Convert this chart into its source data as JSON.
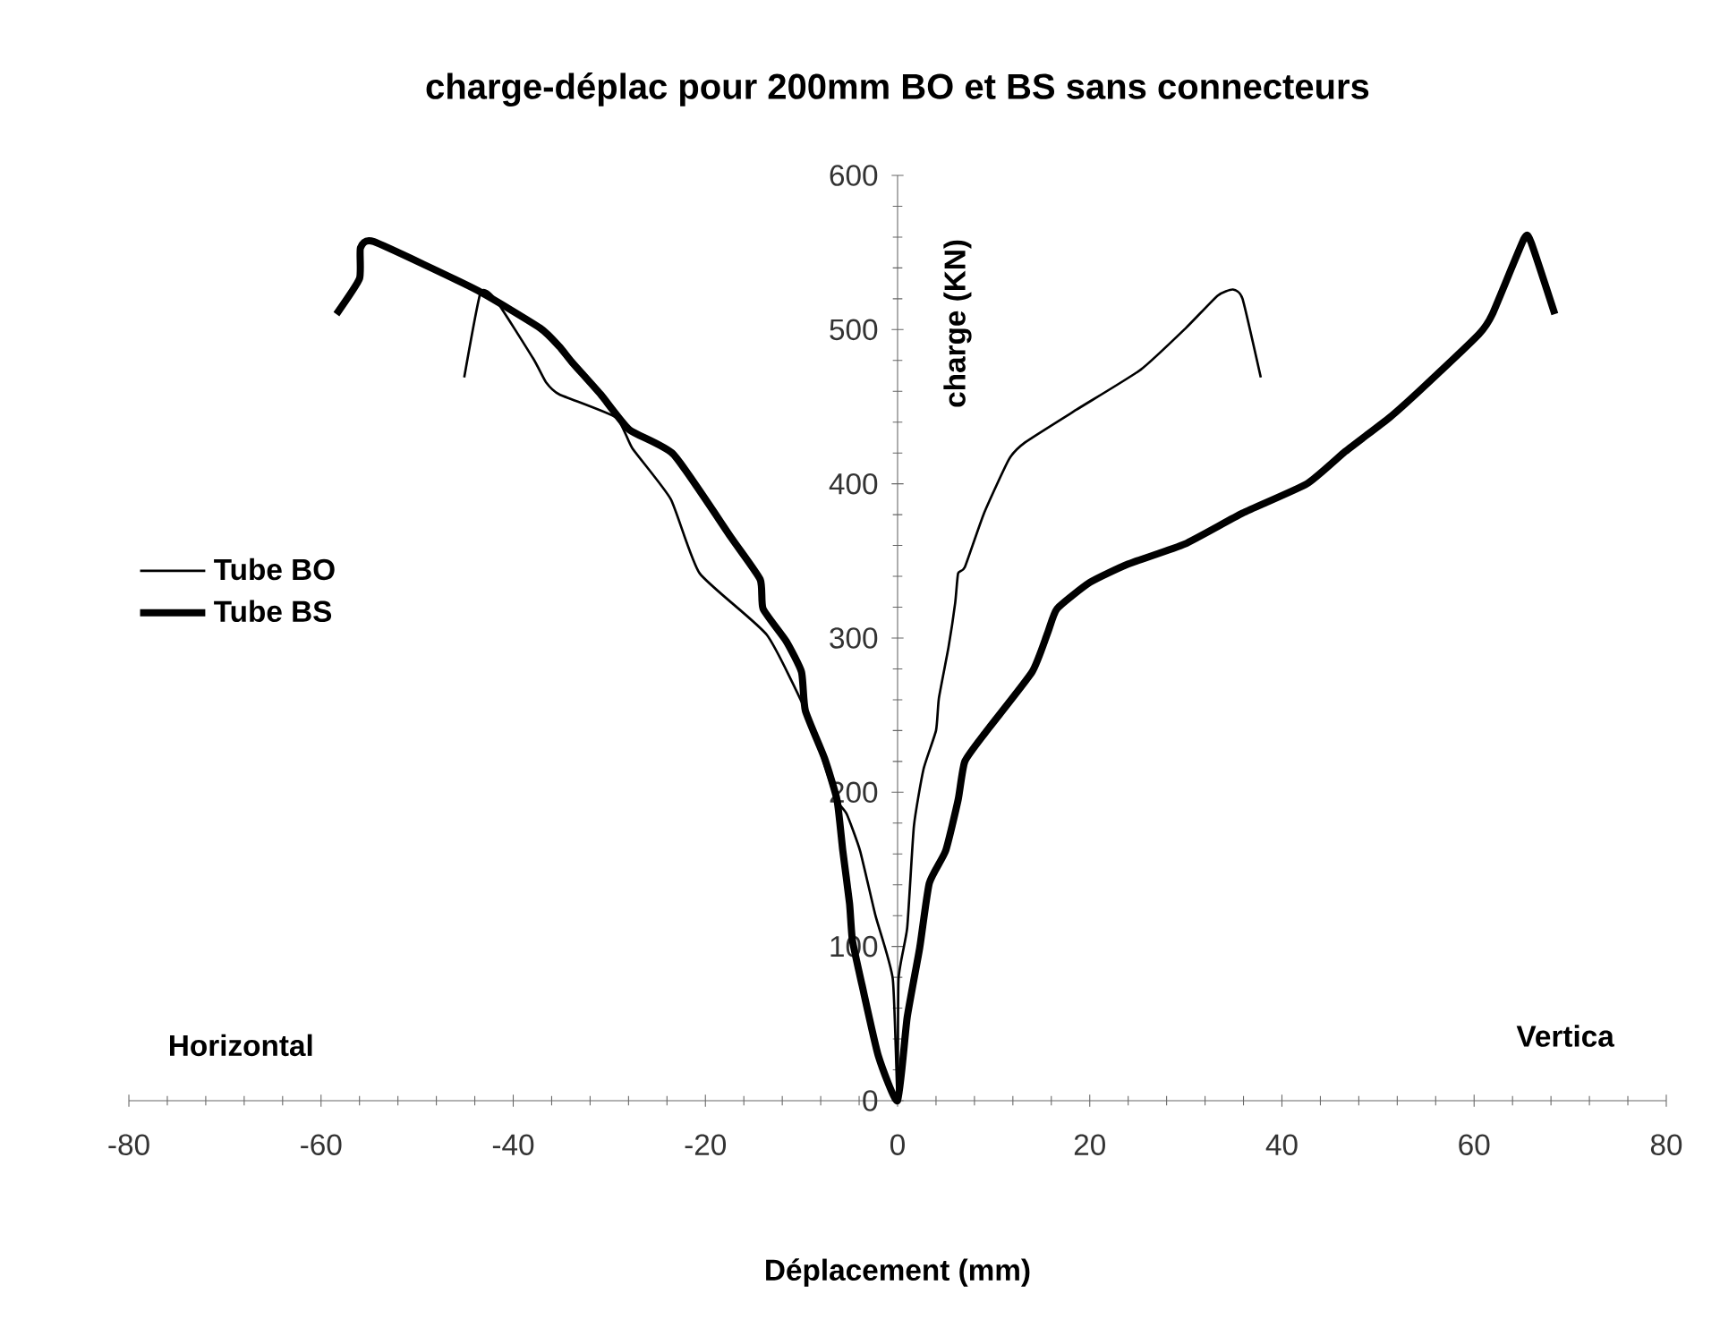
{
  "chart_data": {
    "type": "line",
    "title": "charge-déplac pour 200mm BO  et BS sans connecteurs",
    "xlabel": "Déplacement  (mm)",
    "ylabel": "charge (KN)",
    "xlim": [
      -80,
      80
    ],
    "xticks": [
      -80,
      -60,
      -40,
      -20,
      0,
      20,
      40,
      60,
      80
    ],
    "ylim": [
      0,
      600
    ],
    "yticks": [
      0,
      100,
      200,
      300,
      400,
      500,
      600
    ],
    "legend": "left",
    "marker": "none",
    "line_style": "solid",
    "annotations": [
      "Horizontal",
      "Vertica"
    ],
    "series": [
      {
        "name": "Tube BO",
        "color": "#000000",
        "x": [
          -45.1,
          -43.4,
          -41.9,
          -37.9,
          -36.6,
          -35.2,
          -29.3,
          -27.6,
          -23.6,
          -20.6,
          -13.6,
          -9.3,
          -6.5,
          -5.3,
          -3.9,
          -2.3,
          -0.5,
          0,
          0.1,
          1.0,
          1.7,
          2.7,
          4.0,
          4.3,
          5.3,
          6.0,
          6.3,
          7.0,
          9.0,
          11.6,
          13.3,
          18.6,
          25.3,
          30.0,
          33.3,
          34.9,
          35.9,
          37.8
        ],
        "values": [
          469,
          524,
          520,
          481,
          466,
          458,
          443,
          423,
          390,
          342,
          302,
          249,
          197,
          186,
          162,
          120,
          79,
          0,
          79,
          112,
          178,
          215,
          240,
          261,
          294,
          323,
          342,
          346,
          381,
          416,
          427,
          448,
          474,
          501,
          522,
          526,
          520,
          469
        ]
      },
      {
        "name": "Tube BS",
        "color": "#000000",
        "x": [
          -58.4,
          -56.0,
          -55.9,
          -54.5,
          -43.9,
          -37.2,
          -35.2,
          -33.9,
          -30.9,
          -27.9,
          -23.3,
          -17.3,
          -14.3,
          -14.0,
          -11.6,
          -10.0,
          -9.6,
          -7.6,
          -6.3,
          -5.7,
          -5.0,
          -4.7,
          -3.7,
          -2.0,
          0,
          1.0,
          2.3,
          3.3,
          5.0,
          6.3,
          7.0,
          9.3,
          14.0,
          15.6,
          16.6,
          20.0,
          24.0,
          29.9,
          35.9,
          42.6,
          46.6,
          51.2,
          54.6,
          60.5,
          61.9,
          65.2,
          65.9,
          68.4
        ],
        "values": [
          510,
          533,
          553,
          557,
          526,
          501,
          489,
          479,
          458,
          435,
          419,
          365,
          338,
          319,
          298,
          278,
          253,
          222,
          195,
          162,
          128,
          104,
          75,
          29,
          0,
          54,
          99,
          141,
          162,
          195,
          220,
          240,
          278,
          303,
          319,
          336,
          348,
          361,
          381,
          400,
          421,
          443,
          462,
          497,
          510,
          559,
          557,
          510
        ]
      }
    ]
  }
}
